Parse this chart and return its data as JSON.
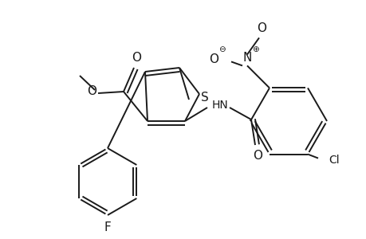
{
  "bg_color": "#ffffff",
  "line_color": "#1a1a1a",
  "lw": 1.4,
  "doff": 0.012,
  "figsize": [
    4.6,
    3.0
  ],
  "dpi": 100,
  "xlim": [
    0,
    460
  ],
  "ylim": [
    0,
    300
  ]
}
